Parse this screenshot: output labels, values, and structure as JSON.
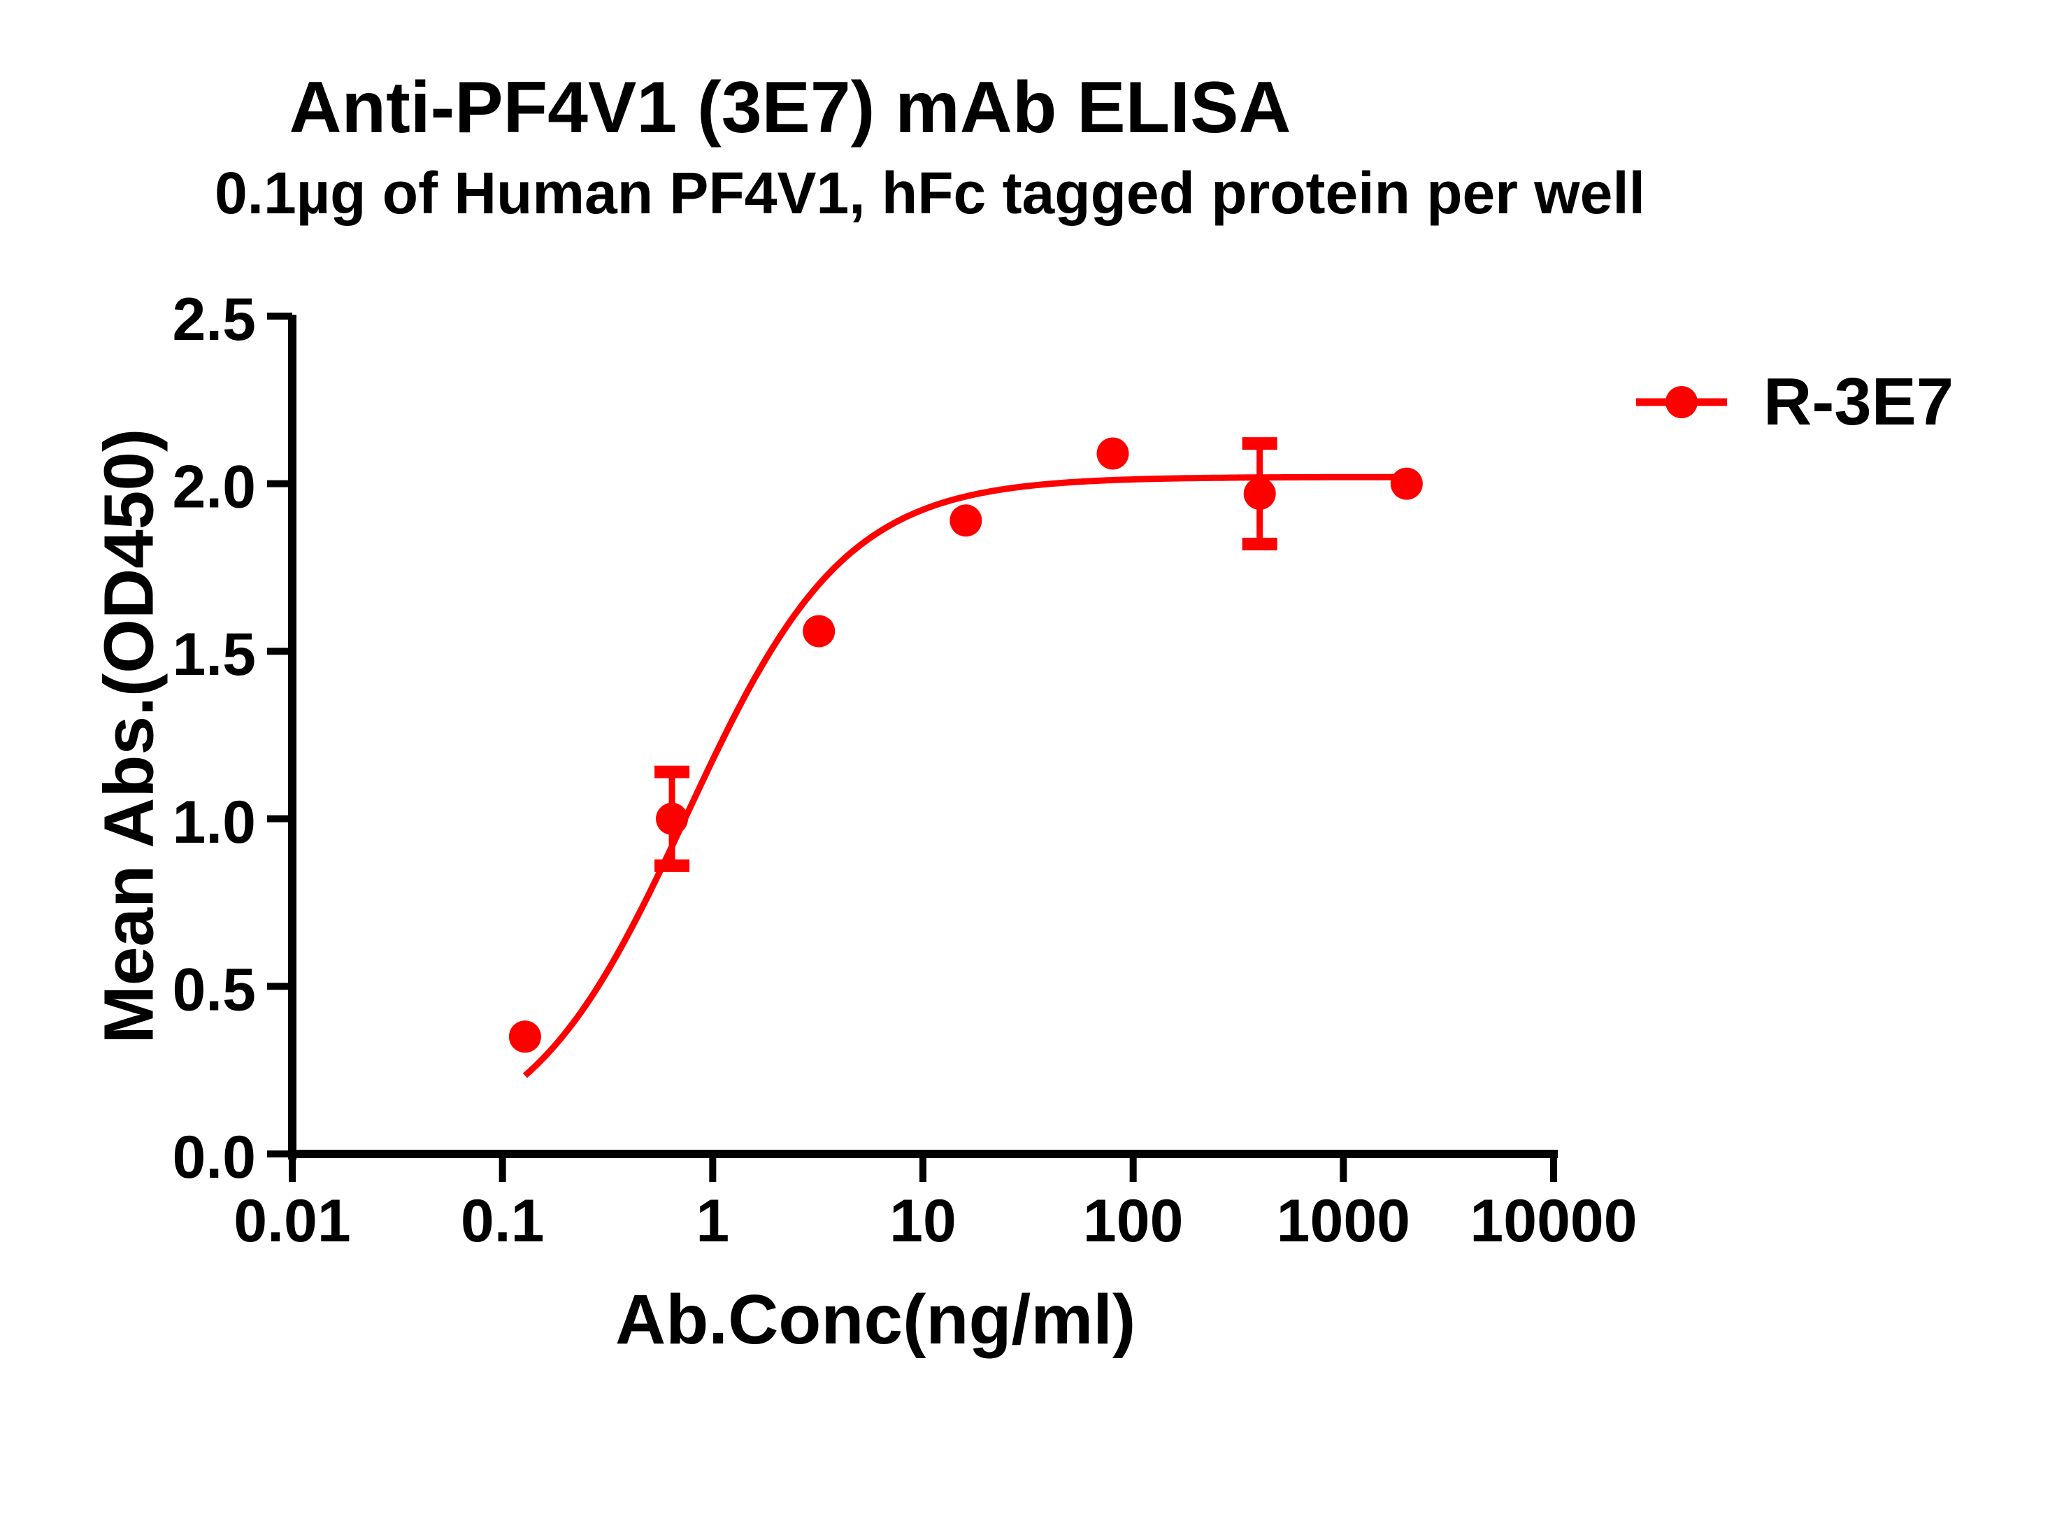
{
  "chart_data": {
    "type": "line",
    "title": "Anti-PF4V1 (3E7) mAb ELISA",
    "subtitle": "0.1µg of Human PF4V1, hFc tagged protein per well",
    "xlabel": "Ab.Conc(ng/ml)",
    "ylabel": "Mean Abs.(OD450)",
    "xscale": "log",
    "xlim": [
      0.01,
      10000
    ],
    "ylim": [
      0.0,
      2.5
    ],
    "x_ticks": [
      "0.01",
      "0.1",
      "1",
      "10",
      "100",
      "1000",
      "10000"
    ],
    "y_ticks": [
      "0.0",
      "0.5",
      "1.0",
      "1.5",
      "2.0",
      "2.5"
    ],
    "grid": false,
    "legend_position": "right",
    "series": [
      {
        "name": "R-3E7",
        "color": "#ff0000",
        "x": [
          0.128,
          0.64,
          3.2,
          16,
          80,
          400,
          2000
        ],
        "y": [
          0.35,
          1.0,
          1.56,
          1.89,
          2.09,
          1.97,
          2.0
        ],
        "error": [
          0,
          0.14,
          0,
          0,
          0,
          0.15,
          0
        ],
        "fit": "4PL sigmoidal curve"
      }
    ]
  }
}
